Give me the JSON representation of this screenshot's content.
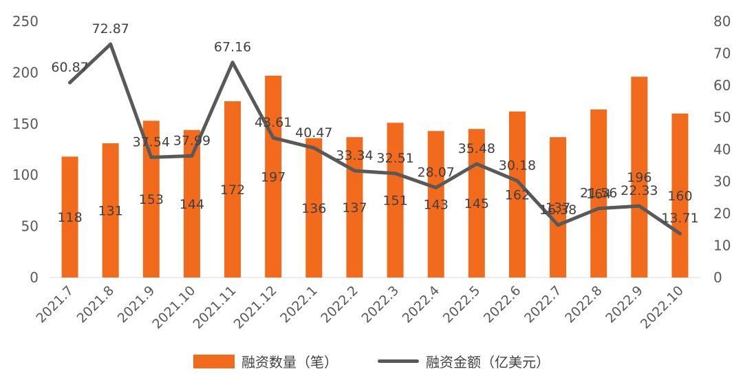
{
  "chart_data": {
    "type": "bar+line",
    "categories": [
      "2021.7",
      "2021.8",
      "2021.9",
      "2021.10",
      "2021.11",
      "2021.12",
      "2022.1",
      "2022.2",
      "2022.3",
      "2022.4",
      "2022.5",
      "2022.6",
      "2022.7",
      "2022.8",
      "2022.9",
      "2022.10"
    ],
    "series": [
      {
        "name": "融资数量（笔）",
        "type": "bar",
        "axis": "left",
        "color": "#f26b1d",
        "values": [
          118,
          131,
          153,
          144,
          172,
          197,
          136,
          137,
          151,
          143,
          145,
          162,
          137,
          164,
          196,
          160
        ],
        "labels": [
          "118",
          "131",
          "153",
          "144",
          "172",
          "197",
          "136",
          "137",
          "151",
          "143",
          "145",
          "162",
          "137",
          "164",
          "196",
          "160"
        ]
      },
      {
        "name": "融资金额（亿美元）",
        "type": "line",
        "axis": "right",
        "color": "#595959",
        "values": [
          60.87,
          72.87,
          37.54,
          37.99,
          67.16,
          43.61,
          40.47,
          33.34,
          32.51,
          28.07,
          35.48,
          30.18,
          16.38,
          21.56,
          22.33,
          13.71
        ],
        "labels": [
          "60.87",
          "72.87",
          "37.54",
          "37.99",
          "67.16",
          "43.61",
          "40.47",
          "33.34",
          "32.51",
          "28.07",
          "35.48",
          "30.18",
          "16.38",
          "21.56",
          "22.33",
          "13.71"
        ]
      }
    ],
    "left_axis": {
      "ylim": [
        0,
        250
      ],
      "ticks": [
        "0",
        "50",
        "100",
        "150",
        "200",
        "250"
      ]
    },
    "right_axis": {
      "ylim": [
        0,
        80
      ],
      "ticks": [
        "0",
        "10",
        "20",
        "30",
        "40",
        "50",
        "60",
        "70",
        "80"
      ]
    },
    "grid": false,
    "legend_position": "bottom"
  }
}
